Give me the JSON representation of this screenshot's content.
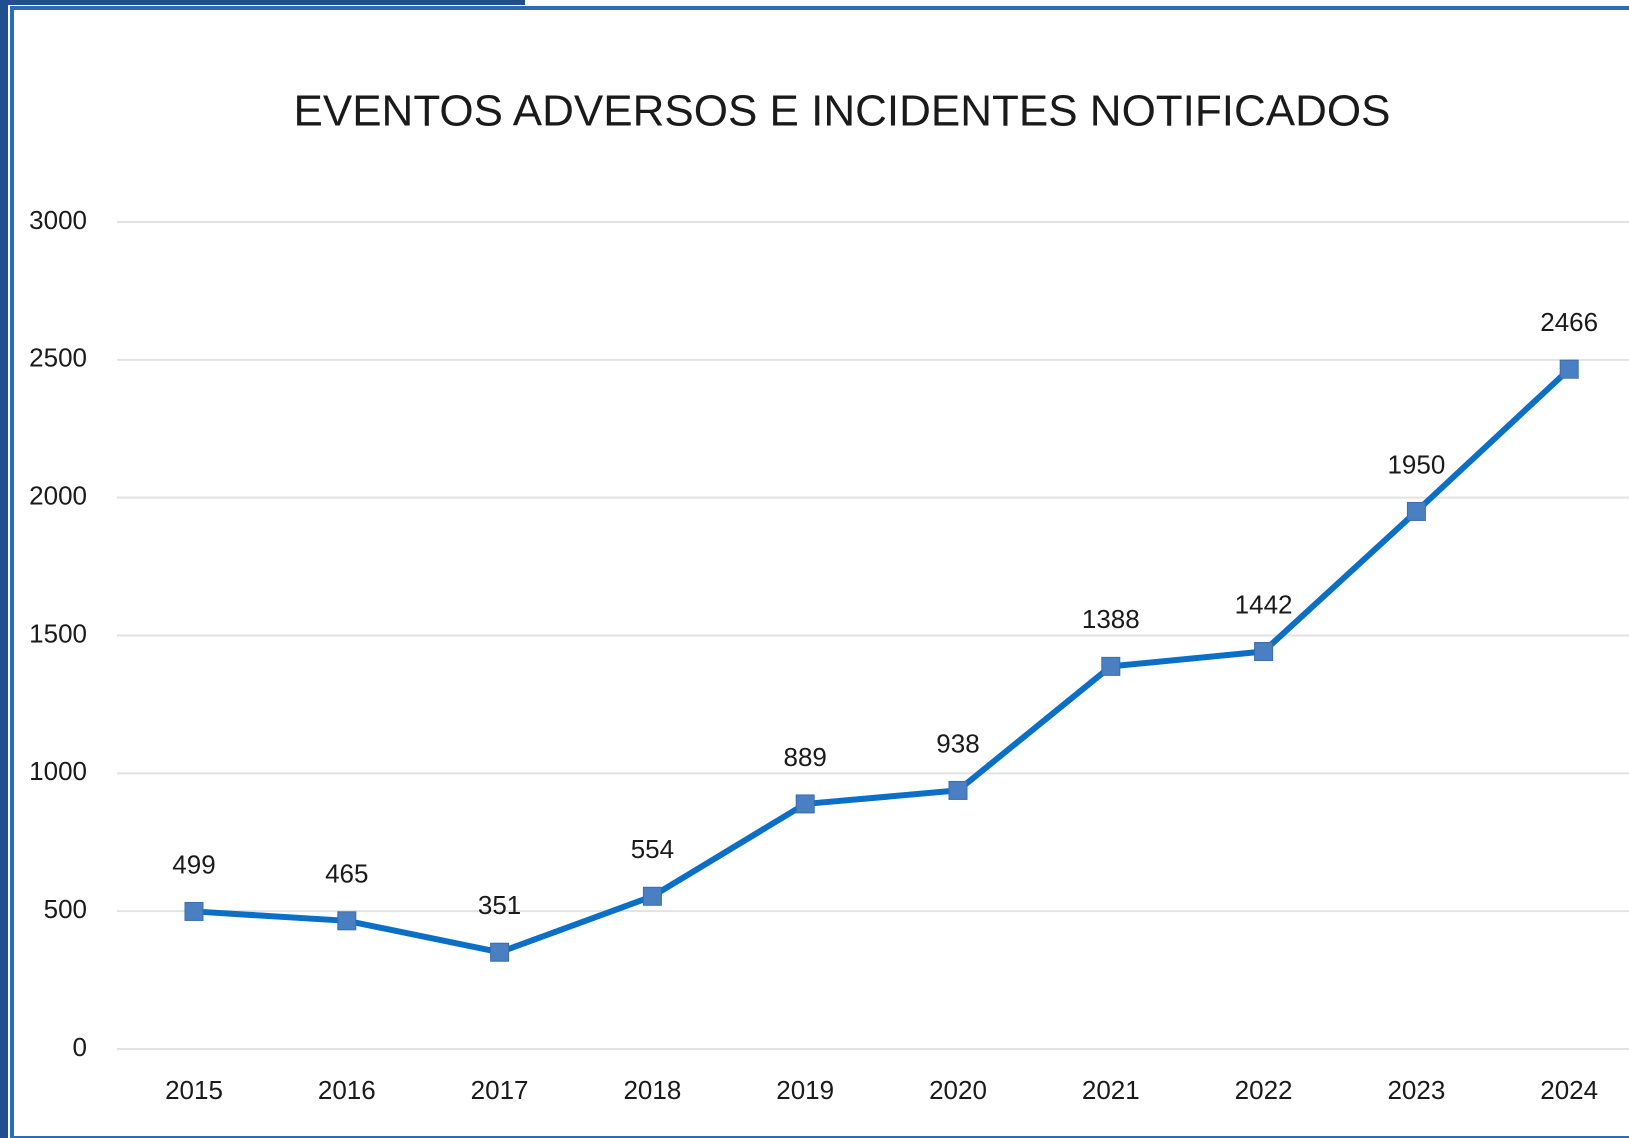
{
  "chart_data": {
    "type": "line",
    "title": "EVENTOS ADVERSOS E INCIDENTES NOTIFICADOS",
    "categories": [
      "2015",
      "2016",
      "2017",
      "2018",
      "2019",
      "2020",
      "2021",
      "2022",
      "2023",
      "2024"
    ],
    "values": [
      499,
      465,
      351,
      554,
      889,
      938,
      1388,
      1442,
      1950,
      2466
    ],
    "color": "#0b6fc6",
    "marker_color": "#4a7fc1",
    "ylim": [
      0,
      3000
    ],
    "yticks": [
      0,
      500,
      1000,
      1500,
      2000,
      2500,
      3000
    ],
    "grid": true
  }
}
